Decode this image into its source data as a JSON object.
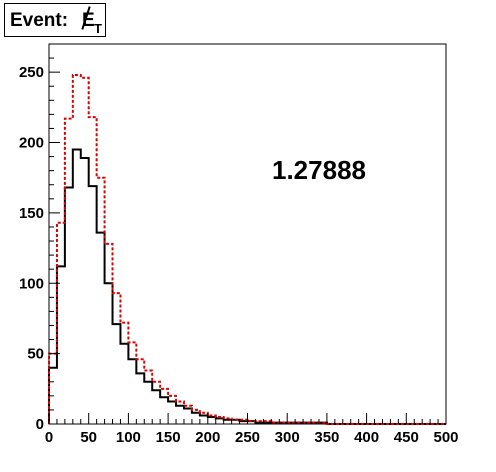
{
  "chart_data": {
    "type": "line",
    "title_text": "Event: ",
    "title_symbol": "E",
    "title_subscript": "T",
    "annotation": "1.27888",
    "xlabel": "",
    "ylabel": "",
    "xlim": [
      0,
      500
    ],
    "ylim": [
      0,
      270
    ],
    "bin_width": 10,
    "xticks": [
      0,
      50,
      100,
      150,
      200,
      250,
      300,
      350,
      400,
      450,
      500
    ],
    "yticks": [
      0,
      50,
      100,
      150,
      200,
      250
    ],
    "grid": false,
    "series": [
      {
        "style": "solid",
        "color": "#000000",
        "values": [
          40,
          112,
          168,
          195,
          189,
          169,
          136,
          100,
          71,
          57,
          46,
          36,
          30,
          24,
          19,
          16,
          13,
          11,
          8,
          6,
          5,
          4,
          3,
          3,
          2,
          2,
          1,
          1,
          1,
          1,
          1,
          1,
          1,
          1,
          1,
          0,
          0,
          0,
          0,
          0,
          0,
          0,
          0,
          0,
          0,
          0,
          0,
          0,
          0,
          0
        ]
      },
      {
        "style": "dashed",
        "color": "#dd0000",
        "values": [
          50,
          143,
          217,
          248,
          246,
          218,
          175,
          128,
          93,
          72,
          58,
          46,
          38,
          30,
          25,
          20,
          16,
          13,
          10,
          8,
          6,
          5,
          4,
          3,
          3,
          2,
          2,
          2,
          1,
          1,
          1,
          1,
          1,
          1,
          1,
          0,
          0,
          0,
          0,
          0,
          0,
          0,
          0,
          0,
          0,
          0,
          0,
          0,
          0,
          0
        ]
      }
    ]
  }
}
